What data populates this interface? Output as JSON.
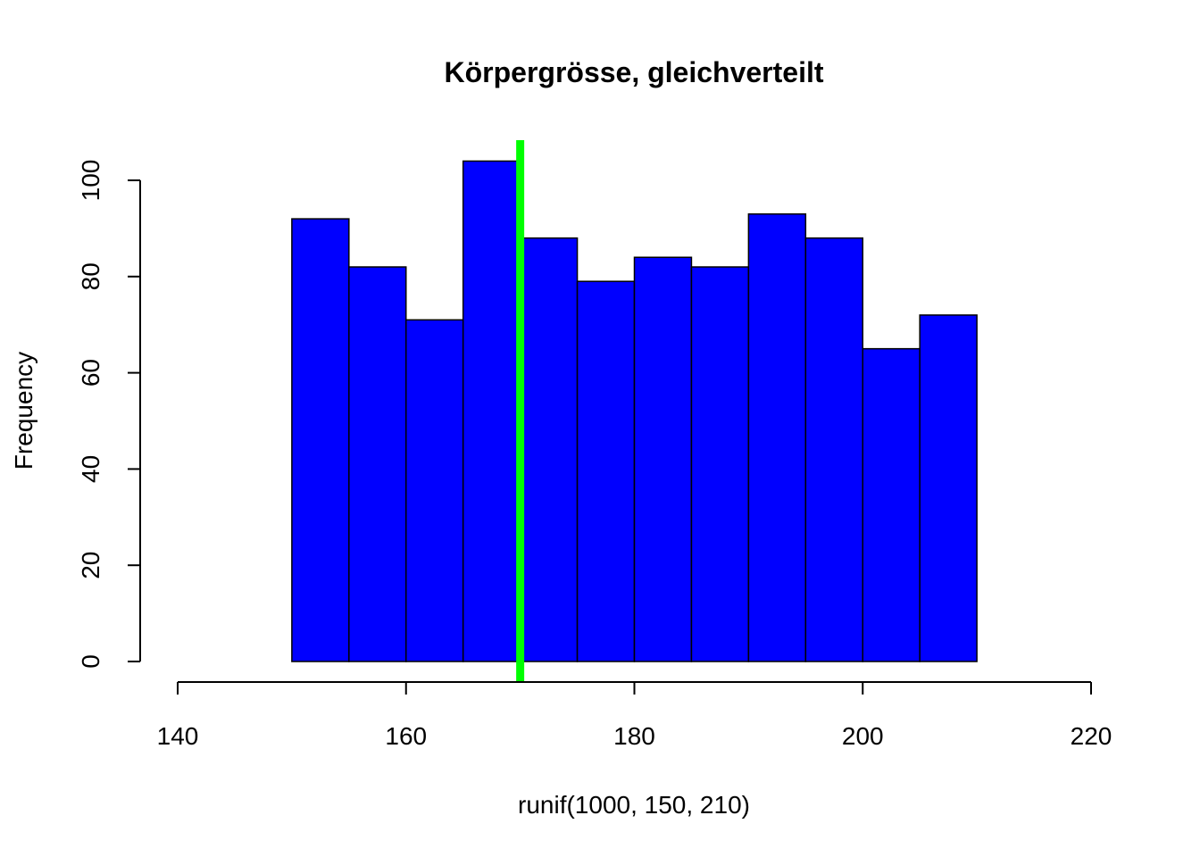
{
  "chart_data": {
    "type": "bar",
    "title": "Körpergrösse, gleichverteilt",
    "xlabel": "runif(1000, 150, 210)",
    "ylabel": "Frequency",
    "bins": [
      {
        "start": 150,
        "end": 155,
        "count": 92
      },
      {
        "start": 155,
        "end": 160,
        "count": 82
      },
      {
        "start": 160,
        "end": 165,
        "count": 71
      },
      {
        "start": 165,
        "end": 170,
        "count": 104
      },
      {
        "start": 170,
        "end": 175,
        "count": 88
      },
      {
        "start": 175,
        "end": 180,
        "count": 79
      },
      {
        "start": 180,
        "end": 185,
        "count": 84
      },
      {
        "start": 185,
        "end": 190,
        "count": 82
      },
      {
        "start": 190,
        "end": 195,
        "count": 93
      },
      {
        "start": 195,
        "end": 200,
        "count": 88
      },
      {
        "start": 200,
        "end": 205,
        "count": 65
      },
      {
        "start": 205,
        "end": 210,
        "count": 72
      }
    ],
    "xlim": [
      140,
      220
    ],
    "ylim": [
      0,
      104
    ],
    "xticks": [
      "140",
      "160",
      "180",
      "200",
      "220"
    ],
    "yticks": [
      "0",
      "20",
      "40",
      "60",
      "80",
      "100"
    ],
    "reference_line": {
      "x": 170,
      "color": "#00ff00"
    },
    "bar_color": "#0000ff",
    "grid": false,
    "legend": "none"
  }
}
